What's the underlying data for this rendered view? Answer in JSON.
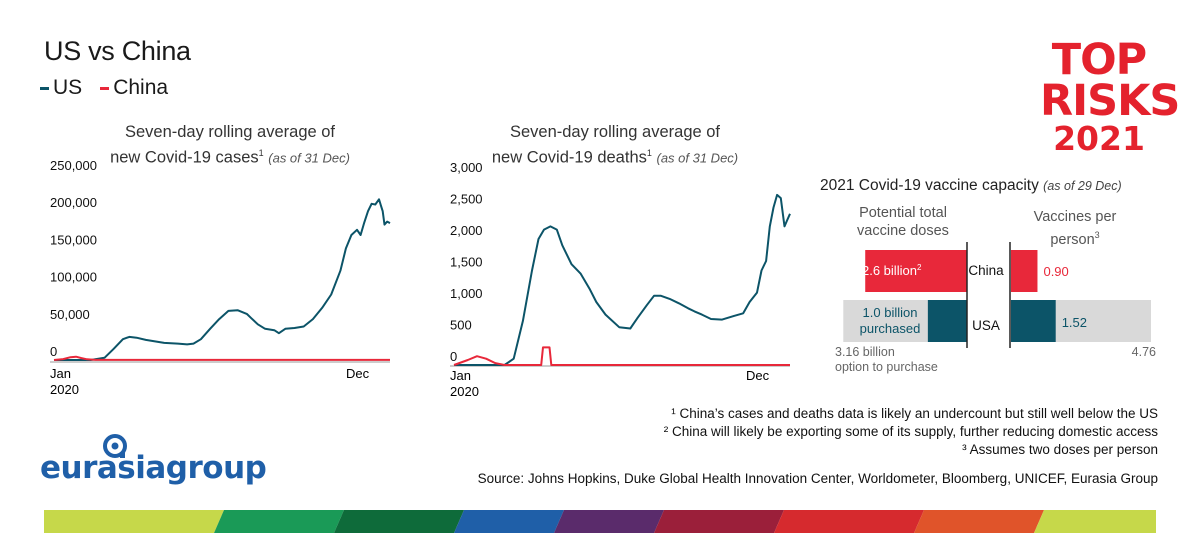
{
  "header": {
    "title": "US vs China"
  },
  "legend": [
    {
      "name": "US",
      "color": "#0c5468"
    },
    {
      "name": "China",
      "color": "#e8283a"
    }
  ],
  "brand": {
    "line1": "TOP",
    "line2": "RISKS",
    "line3": "2021",
    "color": "#e4222d"
  },
  "chart_data": [
    {
      "type": "line",
      "title_line1": "Seven-day rolling average of",
      "title_line2": "new Covid-19 cases",
      "title_sup": "1",
      "title_note": "(as of 31 Dec)",
      "y_ticks": [
        "250,000",
        "200,000",
        "150,000",
        "100,000",
        "50,000",
        "0"
      ],
      "y_tick_values": [
        250000,
        200000,
        150000,
        100000,
        50000,
        0
      ],
      "x_ticks": [
        "Jan\n2020",
        "Dec"
      ],
      "x_tick_jan": "Jan",
      "x_tick_year": "2020",
      "x_tick_dec": "Dec",
      "ylim": [
        0,
        250000
      ],
      "x_days": [
        0,
        366
      ],
      "series": [
        {
          "name": "US",
          "color": "#0c5468",
          "points": [
            [
              0,
              0
            ],
            [
              40,
              0
            ],
            [
              55,
              3000
            ],
            [
              65,
              15000
            ],
            [
              75,
              28000
            ],
            [
              82,
              31000
            ],
            [
              90,
              30000
            ],
            [
              100,
              27000
            ],
            [
              110,
              25000
            ],
            [
              120,
              23000
            ],
            [
              135,
              22000
            ],
            [
              145,
              21000
            ],
            [
              152,
              22000
            ],
            [
              160,
              28000
            ],
            [
              170,
              42000
            ],
            [
              180,
              55000
            ],
            [
              190,
              66000
            ],
            [
              200,
              67000
            ],
            [
              210,
              62000
            ],
            [
              215,
              56000
            ],
            [
              222,
              48000
            ],
            [
              230,
              42000
            ],
            [
              240,
              40000
            ],
            [
              245,
              36000
            ],
            [
              252,
              42000
            ],
            [
              262,
              43000
            ],
            [
              272,
              45000
            ],
            [
              282,
              55000
            ],
            [
              292,
              70000
            ],
            [
              302,
              88000
            ],
            [
              312,
              120000
            ],
            [
              318,
              150000
            ],
            [
              324,
              168000
            ],
            [
              330,
              175000
            ],
            [
              334,
              168000
            ],
            [
              338,
              185000
            ],
            [
              342,
              200000
            ],
            [
              346,
              210000
            ],
            [
              350,
              209000
            ],
            [
              354,
              216000
            ],
            [
              356,
              208000
            ],
            [
              358,
              200000
            ],
            [
              360,
              182000
            ],
            [
              363,
              186000
            ],
            [
              366,
              184000
            ]
          ]
        },
        {
          "name": "China",
          "color": "#e8283a",
          "points": [
            [
              0,
              0
            ],
            [
              10,
              1200
            ],
            [
              18,
              3800
            ],
            [
              24,
              4500
            ],
            [
              30,
              2500
            ],
            [
              36,
              1000
            ],
            [
              45,
              200
            ],
            [
              60,
              100
            ],
            [
              366,
              100
            ]
          ]
        }
      ]
    },
    {
      "type": "line",
      "title_line1": "Seven-day rolling average of",
      "title_line2": "new Covid-19 deaths",
      "title_sup": "1",
      "title_note": "(as of 31 Dec)",
      "y_ticks": [
        "3,000",
        "2,500",
        "2,000",
        "1,500",
        "1,000",
        "500",
        "0"
      ],
      "y_tick_values": [
        3000,
        2500,
        2000,
        1500,
        1000,
        500,
        0
      ],
      "x_tick_jan": "Jan",
      "x_tick_year": "2020",
      "x_tick_dec": "Dec",
      "ylim": [
        0,
        3000
      ],
      "x_days": [
        0,
        366
      ],
      "series": [
        {
          "name": "US",
          "color": "#0c5468",
          "points": [
            [
              0,
              0
            ],
            [
              55,
              0
            ],
            [
              65,
              100
            ],
            [
              75,
              700
            ],
            [
              85,
              1500
            ],
            [
              92,
              2000
            ],
            [
              98,
              2150
            ],
            [
              105,
              2200
            ],
            [
              112,
              2150
            ],
            [
              118,
              1900
            ],
            [
              128,
              1600
            ],
            [
              138,
              1450
            ],
            [
              148,
              1200
            ],
            [
              155,
              1000
            ],
            [
              165,
              800
            ],
            [
              180,
              600
            ],
            [
              192,
              580
            ],
            [
              200,
              750
            ],
            [
              210,
              950
            ],
            [
              218,
              1100
            ],
            [
              225,
              1100
            ],
            [
              235,
              1050
            ],
            [
              245,
              980
            ],
            [
              255,
              900
            ],
            [
              262,
              850
            ],
            [
              270,
              800
            ],
            [
              280,
              730
            ],
            [
              292,
              720
            ],
            [
              305,
              780
            ],
            [
              315,
              820
            ],
            [
              322,
              1000
            ],
            [
              330,
              1150
            ],
            [
              335,
              1500
            ],
            [
              340,
              1650
            ],
            [
              344,
              2200
            ],
            [
              348,
              2500
            ],
            [
              352,
              2700
            ],
            [
              356,
              2650
            ],
            [
              360,
              2200
            ],
            [
              363,
              2300
            ],
            [
              366,
              2400
            ]
          ]
        },
        {
          "name": "China",
          "color": "#e8283a",
          "points": [
            [
              0,
              0
            ],
            [
              15,
              80
            ],
            [
              25,
              140
            ],
            [
              35,
              100
            ],
            [
              45,
              30
            ],
            [
              55,
              0
            ],
            [
              95,
              0
            ],
            [
              97,
              280
            ],
            [
              104,
              280
            ],
            [
              106,
              0
            ],
            [
              366,
              0
            ]
          ]
        }
      ]
    },
    {
      "type": "bar",
      "title": "2021 Covid-19 vaccine capacity",
      "title_note": "(as of 29 Dec)",
      "left_head_line1": "Potential total",
      "left_head_line2": "vaccine doses",
      "right_head_line1": "Vaccines per",
      "right_head_line2": "person",
      "right_head_sup": "3",
      "categories": [
        "China",
        "USA"
      ],
      "doses_billion": {
        "China": 2.6,
        "USA_purchased": 1.0,
        "USA_option": 3.16
      },
      "per_person": {
        "China": 0.9,
        "USA": 1.52,
        "USA_option": 4.76
      },
      "labels": {
        "china_doses": "2.6 billion",
        "china_doses_sup": "2",
        "usa_doses_line1": "1.0 billion",
        "usa_doses_line2": "purchased",
        "usa_option_line1": "3.16 billion",
        "usa_option_line2": "option to purchase",
        "china_pp": "0.90",
        "usa_pp": "1.52",
        "usa_option_pp": "4.76"
      },
      "colors": {
        "china": "#e8283a",
        "usa": "#0c5468",
        "option": "#d9d9d9"
      }
    }
  ],
  "footnotes": [
    "¹ China’s cases and deaths data is likely an undercount but still well below the US",
    "² China will likely be exporting some of its supply, further reducing domestic access",
    "³ Assumes two doses per person"
  ],
  "source": "Source: Johns Hopkins, Duke Global Health Innovation Center, Worldometer, Bloomberg, UNICEF, Eurasia Group",
  "logo": {
    "text": "eurasiagroup"
  }
}
